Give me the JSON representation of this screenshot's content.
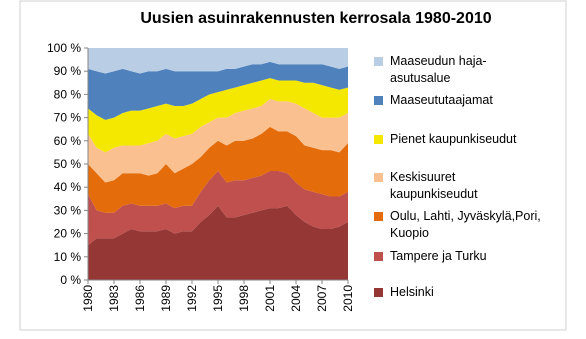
{
  "chart_data": {
    "type": "area",
    "stacked": true,
    "title": "Uusien asuinrakennusten kerrosala 1980-2010",
    "x": [
      1980,
      1981,
      1982,
      1983,
      1984,
      1985,
      1986,
      1987,
      1988,
      1989,
      1990,
      1991,
      1992,
      1993,
      1994,
      1995,
      1996,
      1997,
      1998,
      1999,
      2000,
      2001,
      2002,
      2003,
      2004,
      2005,
      2006,
      2007,
      2008,
      2009,
      2010
    ],
    "xlim": [
      1980,
      2010
    ],
    "xticks": [
      1980,
      1983,
      1986,
      1989,
      1992,
      1995,
      1998,
      2001,
      2004,
      2007,
      2010
    ],
    "ylim": [
      0,
      100
    ],
    "yticks": [
      {
        "value": 0,
        "label": "0 %"
      },
      {
        "value": 10,
        "label": "10 %"
      },
      {
        "value": 20,
        "label": "20 %"
      },
      {
        "value": 30,
        "label": "30 %"
      },
      {
        "value": 40,
        "label": "40 %"
      },
      {
        "value": 50,
        "label": "50 %"
      },
      {
        "value": 60,
        "label": "60 %"
      },
      {
        "value": 70,
        "label": "70 %"
      },
      {
        "value": 80,
        "label": "80 %"
      },
      {
        "value": 90,
        "label": "90 %"
      },
      {
        "value": 100,
        "label": "100 %"
      }
    ],
    "legend": "right",
    "series": [
      {
        "name": "Helsinki",
        "color": "#953735",
        "values": [
          15,
          18,
          18,
          18,
          20,
          22,
          21,
          21,
          21,
          22,
          20,
          21,
          21,
          25,
          28,
          32,
          27,
          27,
          28,
          29,
          30,
          31,
          31,
          32,
          28,
          25,
          23,
          22,
          22,
          23,
          25
        ]
      },
      {
        "name": "Tampere ja Turku",
        "color": "#c0504d",
        "values": [
          22,
          12,
          11,
          11,
          12,
          11,
          11,
          11,
          11,
          11,
          11,
          11,
          11,
          13,
          15,
          15,
          15,
          16,
          15,
          15,
          15,
          16,
          16,
          14,
          14,
          14,
          15,
          15,
          14,
          13,
          13
        ]
      },
      {
        "name": "Oulu, Lahti, Jyväskylä,Pori, Kuopio",
        "color": "#e46c0a",
        "values": [
          13,
          16,
          13,
          14,
          14,
          13,
          14,
          13,
          14,
          17,
          15,
          16,
          18,
          15,
          14,
          13,
          16,
          17,
          17,
          17,
          18,
          19,
          17,
          18,
          20,
          19,
          19,
          19,
          20,
          19,
          21
        ]
      },
      {
        "name": "Keskisuuret kaupunkiseudut",
        "color": "#fac090",
        "values": [
          13,
          11,
          13,
          14,
          12,
          12,
          12,
          14,
          14,
          13,
          15,
          14,
          13,
          13,
          11,
          10,
          12,
          12,
          13,
          13,
          12,
          12,
          13,
          13,
          14,
          16,
          15,
          14,
          14,
          15,
          13
        ]
      },
      {
        "name": "Pienet kaupunkiseudut",
        "color": "#f5e800",
        "values": [
          11,
          14,
          14,
          13,
          14,
          15,
          15,
          15,
          15,
          13,
          14,
          13,
          13,
          12,
          12,
          11,
          12,
          11,
          11,
          11,
          11,
          9,
          9,
          9,
          10,
          11,
          13,
          14,
          13,
          12,
          11
        ]
      },
      {
        "name": "Maaseututaajamat",
        "color": "#4f81bd",
        "values": [
          17,
          19,
          20,
          20,
          19,
          17,
          16,
          16,
          15,
          15,
          15,
          15,
          14,
          12,
          10,
          9,
          9,
          8,
          8,
          8,
          7,
          7,
          7,
          7,
          7,
          8,
          8,
          9,
          9,
          9,
          9
        ]
      },
      {
        "name": "Maaseudun haja-asutusalue",
        "color": "#b9cde5",
        "values": [
          9,
          10,
          11,
          10,
          9,
          10,
          11,
          10,
          10,
          9,
          10,
          10,
          10,
          10,
          10,
          10,
          9,
          9,
          8,
          7,
          7,
          6,
          7,
          7,
          7,
          7,
          7,
          7,
          8,
          9,
          8
        ]
      }
    ]
  }
}
